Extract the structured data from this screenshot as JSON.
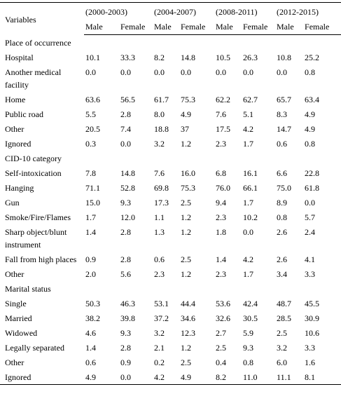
{
  "header": {
    "variables": "Variables",
    "periods": [
      "(2000-2003)",
      "(2004-2007)",
      "(2008-2011)",
      "(2012-2015)"
    ],
    "sexes": [
      "Male",
      "Female",
      "Male",
      "Female",
      "Male",
      "Female",
      "Male",
      "Female"
    ]
  },
  "sections": [
    {
      "title": "Place of occurrence",
      "rows": [
        {
          "label": "Hospital",
          "values": [
            "10.1",
            "33.3",
            "8.2",
            "14.8",
            "10.5",
            "26.3",
            "10.8",
            "25.2"
          ]
        },
        {
          "label": "Another medical facility",
          "values": [
            "0.0",
            "0.0",
            "0.0",
            "0.0",
            "0.0",
            "0.0",
            "0.0",
            "0.8"
          ]
        },
        {
          "label": "Home",
          "values": [
            "63.6",
            "56.5",
            "61.7",
            "75.3",
            "62.2",
            "62.7",
            "65.7",
            "63.4"
          ]
        },
        {
          "label": "Public road",
          "values": [
            "5.5",
            "2.8",
            "8.0",
            "4.9",
            "7.6",
            "5.1",
            "8.3",
            "4.9"
          ]
        },
        {
          "label": "Other",
          "values": [
            "20.5",
            "7.4",
            "18.8",
            "37",
            "17.5",
            "4.2",
            "14.7",
            "4.9"
          ]
        },
        {
          "label": "Ignored",
          "values": [
            "0.3",
            "0.0",
            "3.2",
            "1.2",
            "2.3",
            "1.7",
            "0.6",
            "0.8"
          ]
        }
      ]
    },
    {
      "title": "CID-10 category",
      "rows": [
        {
          "label": "Self-intoxication",
          "values": [
            "7.8",
            "14.8",
            "7.6",
            "16.0",
            "6.8",
            "16.1",
            "6.6",
            "22.8"
          ]
        },
        {
          "label": "Hanging",
          "values": [
            "71.1",
            "52.8",
            "69.8",
            "75.3",
            "76.0",
            "66.1",
            "75.0",
            "61.8"
          ]
        },
        {
          "label": "Gun",
          "values": [
            "15.0",
            "9.3",
            "17.3",
            "2.5",
            "9.4",
            "1.7",
            "8.9",
            "0.0"
          ]
        },
        {
          "label": "Smoke/Fire/Flames",
          "values": [
            "1.7",
            "12.0",
            "1.1",
            "1.2",
            "2.3",
            "10.2",
            "0.8",
            "5.7"
          ]
        },
        {
          "label": "Sharp object/blunt instrument",
          "values": [
            "1.4",
            "2.8",
            "1.3",
            "1.2",
            "1.8",
            "0.0",
            "2.6",
            "2.4"
          ]
        },
        {
          "label": "Fall from high places",
          "values": [
            "0.9",
            "2.8",
            "0.6",
            "2.5",
            "1.4",
            "4.2",
            "2.6",
            "4.1"
          ]
        },
        {
          "label": "Other",
          "values": [
            "2.0",
            "5.6",
            "2.3",
            "1.2",
            "2.3",
            "1.7",
            "3.4",
            "3.3"
          ]
        }
      ]
    },
    {
      "title": "Marital status",
      "rows": [
        {
          "label": "Single",
          "values": [
            "50.3",
            "46.3",
            "53.1",
            "44.4",
            "53.6",
            "42.4",
            "48.7",
            "45.5"
          ]
        },
        {
          "label": "Married",
          "values": [
            "38.2",
            "39.8",
            "37.2",
            "34.6",
            "32.6",
            "30.5",
            "28.5",
            "30.9"
          ]
        },
        {
          "label": "Widowed",
          "values": [
            "4.6",
            "9.3",
            "3.2",
            "12.3",
            "2.7",
            "5.9",
            "2.5",
            "10.6"
          ]
        },
        {
          "label": "Legally separated",
          "values": [
            "1.4",
            "2.8",
            "2.1",
            "1.2",
            "2.5",
            "9.3",
            "3.2",
            "3.3"
          ]
        },
        {
          "label": "Other",
          "values": [
            "0.6",
            "0.9",
            "0.2",
            "2.5",
            "0.4",
            "0.8",
            "6.0",
            "1.6"
          ]
        },
        {
          "label": "Ignored",
          "values": [
            "4.9",
            "0.0",
            "4.2",
            "4.9",
            "8.2",
            "11.0",
            "11.1",
            "8.1"
          ]
        }
      ]
    }
  ]
}
